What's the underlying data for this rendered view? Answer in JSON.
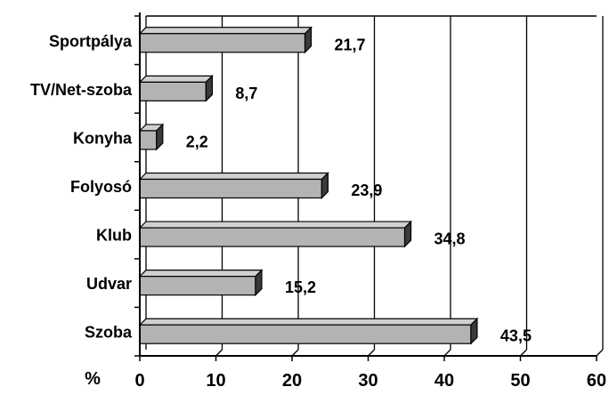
{
  "chart_data": {
    "type": "bar",
    "orientation": "horizontal",
    "style": "3d",
    "bar_color": "#b3b3b3",
    "grid": "vertical",
    "categories": [
      "Sportpálya",
      "TV/Net-szoba",
      "Konyha",
      "Folyosó",
      "Klub",
      "Udvar",
      "Szoba"
    ],
    "values": [
      21.7,
      8.7,
      2.2,
      23.9,
      34.8,
      15.2,
      43.5
    ],
    "value_labels": [
      "21,7",
      "8,7",
      "2,2",
      "23,9",
      "34,8",
      "15,2",
      "43,5"
    ],
    "xlim": [
      0,
      60
    ],
    "x_ticks": [
      0,
      10,
      20,
      30,
      40,
      50,
      60
    ],
    "xlabel": "%",
    "title": "",
    "ylabel": ""
  }
}
